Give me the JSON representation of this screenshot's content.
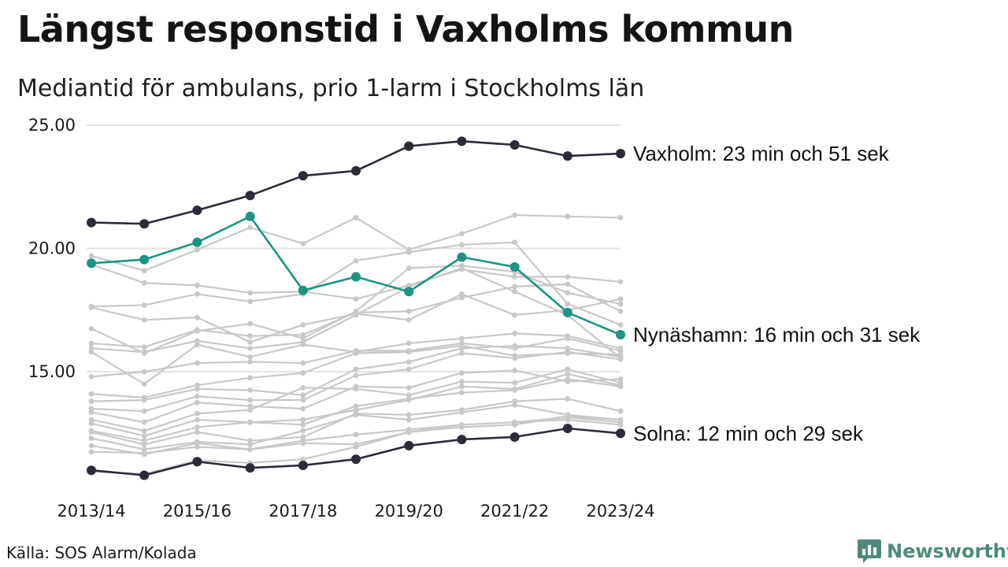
{
  "title": "Längst responstid i Vaxholms kommun",
  "subtitle": "Mediantid för ambulans, prio 1-larm i Stockholms län",
  "source": "Källa: SOS Alarm/Kolada",
  "brand": {
    "name": "Newsworthy",
    "icon": "bar-chart-speech-bubble-icon",
    "color": "#4e8a7c"
  },
  "colors": {
    "highlight_dark": "#2b2b3a",
    "highlight_teal": "#1a9483",
    "background_series": "#c8c8c8",
    "grid": "#e3e3e3"
  },
  "chart_data": {
    "type": "line",
    "categories": [
      "2013/14",
      "2014/15",
      "2015/16",
      "2016/17",
      "2017/18",
      "2018/19",
      "2019/20",
      "2020/21",
      "2021/22",
      "2022/23",
      "2023/24"
    ],
    "x_tick_labels": [
      "2013/14",
      "2015/16",
      "2017/18",
      "2019/20",
      "2021/22",
      "2023/24"
    ],
    "y_ticks": [
      "15.00",
      "20.00",
      "25.00"
    ],
    "ylim": [
      10.5,
      25.0
    ],
    "grid": "horizontal",
    "series": [
      {
        "name": "Vaxholm",
        "role": "highlight_dark",
        "label": "Vaxholm: 23 min och 51 sek",
        "values": [
          21.05,
          21.0,
          21.55,
          22.15,
          22.95,
          23.15,
          24.15,
          24.35,
          24.2,
          23.75,
          23.85
        ]
      },
      {
        "name": "Nynäshamn",
        "role": "highlight_teal",
        "label": "Nynäshamn: 16 min och 31 sek",
        "values": [
          19.4,
          19.55,
          20.25,
          21.3,
          18.3,
          18.85,
          18.25,
          19.65,
          19.25,
          17.4,
          16.5
        ]
      },
      {
        "name": "Solna",
        "role": "highlight_dark",
        "label": "Solna: 12 min och 29 sek",
        "values": [
          11.0,
          10.8,
          11.35,
          11.1,
          11.2,
          11.45,
          12.0,
          12.25,
          12.35,
          12.7,
          12.5
        ]
      },
      {
        "role": "background",
        "values": [
          19.7,
          19.1,
          19.95,
          20.85,
          20.2,
          21.25,
          19.95,
          20.6,
          21.35,
          21.3,
          21.25
        ]
      },
      {
        "role": "background",
        "values": [
          19.35,
          18.6,
          18.5,
          18.2,
          18.25,
          17.95,
          18.5,
          19.15,
          18.85,
          18.85,
          18.65
        ]
      },
      {
        "role": "background",
        "values": [
          17.65,
          17.7,
          18.15,
          17.85,
          18.15,
          19.5,
          19.85,
          20.15,
          20.25,
          17.75,
          16.9
        ]
      },
      {
        "role": "background",
        "values": [
          17.6,
          17.1,
          17.2,
          16.2,
          16.9,
          17.35,
          17.1,
          18.15,
          17.3,
          17.5,
          17.95
        ]
      },
      {
        "role": "background",
        "values": [
          16.75,
          15.75,
          16.65,
          16.95,
          16.35,
          17.45,
          19.2,
          19.3,
          19.05,
          18.2,
          17.75
        ]
      },
      {
        "role": "background",
        "values": [
          16.15,
          16.0,
          16.7,
          16.45,
          16.5,
          17.4,
          17.45,
          18.0,
          18.45,
          18.55,
          17.45
        ]
      },
      {
        "role": "background",
        "values": [
          15.95,
          15.8,
          16.25,
          15.95,
          16.2,
          17.3,
          18.45,
          19.2,
          18.25,
          17.3,
          15.55
        ]
      },
      {
        "role": "background",
        "values": [
          15.8,
          14.5,
          16.1,
          15.6,
          16.1,
          15.8,
          16.15,
          16.35,
          16.55,
          16.45,
          15.95
        ]
      },
      {
        "role": "background",
        "values": [
          14.8,
          15.0,
          15.35,
          15.4,
          15.35,
          15.85,
          15.85,
          16.15,
          15.95,
          16.35,
          15.85
        ]
      },
      {
        "role": "background",
        "values": [
          14.1,
          13.95,
          14.45,
          14.75,
          14.95,
          15.75,
          15.8,
          16.05,
          15.65,
          15.75,
          15.7
        ]
      },
      {
        "role": "background",
        "values": [
          13.8,
          13.85,
          14.3,
          14.25,
          14.05,
          15.1,
          15.4,
          15.95,
          16.05,
          15.95,
          15.6
        ]
      },
      {
        "role": "background",
        "values": [
          13.5,
          13.4,
          14.0,
          13.85,
          13.85,
          14.85,
          15.1,
          15.75,
          15.55,
          15.8,
          15.5
        ]
      },
      {
        "role": "background",
        "values": [
          13.35,
          12.95,
          13.75,
          13.6,
          13.5,
          14.4,
          14.35,
          14.95,
          15.05,
          14.6,
          14.7
        ]
      },
      {
        "role": "background",
        "values": [
          13.05,
          12.6,
          13.3,
          13.45,
          14.35,
          14.3,
          14.05,
          14.6,
          14.55,
          15.1,
          14.55
        ]
      },
      {
        "role": "background",
        "values": [
          12.9,
          12.4,
          13.05,
          12.95,
          13.05,
          13.45,
          13.85,
          14.4,
          14.3,
          14.9,
          14.45
        ]
      },
      {
        "role": "background",
        "values": [
          12.6,
          12.2,
          12.75,
          12.95,
          12.85,
          13.6,
          13.9,
          14.15,
          14.25,
          14.7,
          14.4
        ]
      },
      {
        "role": "background",
        "values": [
          12.55,
          12.05,
          12.55,
          12.2,
          12.35,
          13.3,
          13.25,
          13.45,
          13.8,
          13.9,
          13.4
        ]
      },
      {
        "role": "background",
        "values": [
          12.3,
          11.85,
          12.15,
          12.05,
          12.6,
          13.25,
          13.05,
          13.35,
          13.65,
          13.25,
          13.05
        ]
      },
      {
        "role": "background",
        "values": [
          12.0,
          11.65,
          12.1,
          11.85,
          12.2,
          12.45,
          12.65,
          12.85,
          12.95,
          13.05,
          12.85
        ]
      },
      {
        "role": "background",
        "values": [
          11.75,
          11.7,
          11.95,
          11.85,
          12.1,
          12.05,
          12.55,
          12.85,
          12.95,
          13.15,
          12.95
        ]
      },
      {
        "role": "background",
        "values": [
          10.95,
          10.85,
          11.4,
          11.3,
          11.45,
          11.95,
          12.55,
          12.75,
          12.85,
          13.2,
          13.05
        ]
      }
    ]
  }
}
